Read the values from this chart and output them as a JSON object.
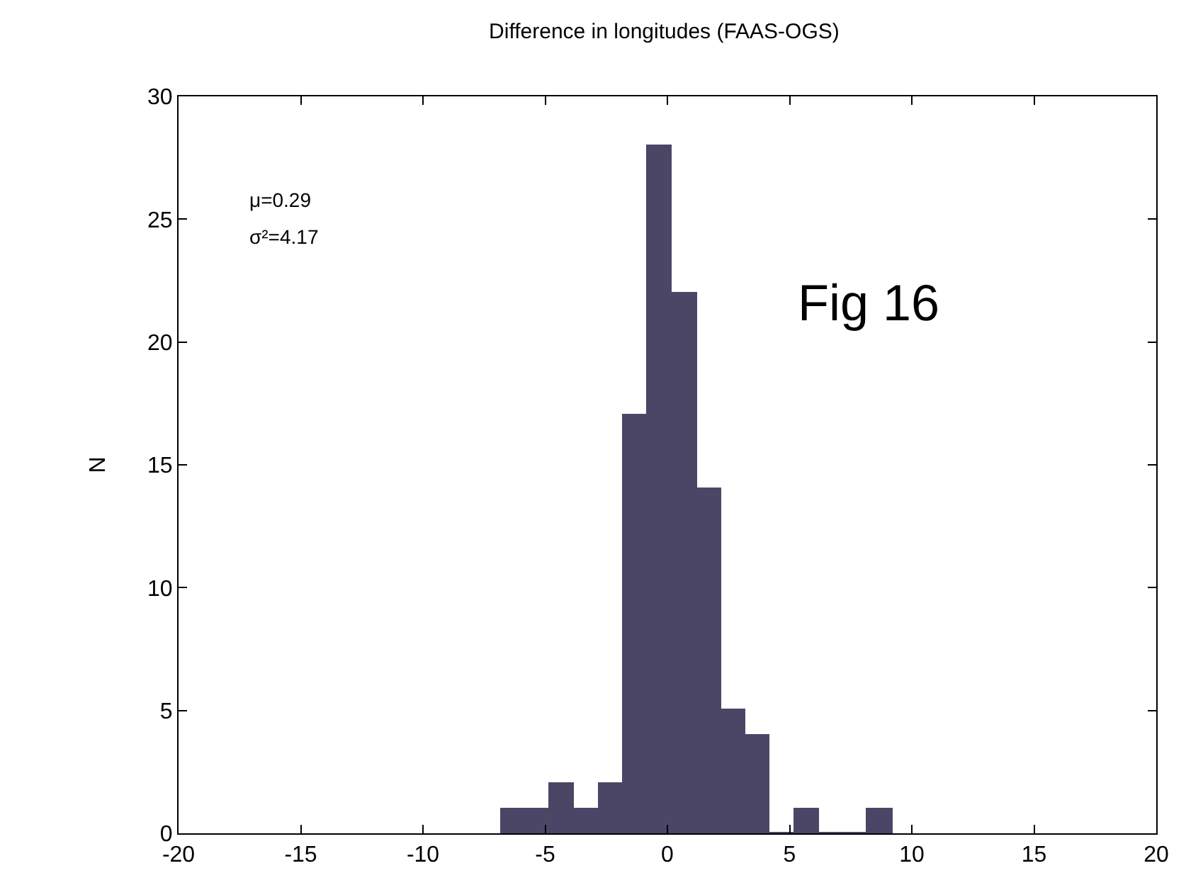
{
  "chart_data": {
    "type": "histogram",
    "title": "Difference in longitudes (FAAS-OGS)",
    "ylabel": "N",
    "bins": [
      -6.8,
      -5.8,
      -4.8,
      -3.8,
      -2.8,
      -1.8,
      -0.8,
      0.2,
      1.2,
      2.2,
      3.2,
      4.2,
      5.2,
      6.2,
      7.2,
      8.2,
      9.2
    ],
    "values": [
      1,
      1,
      2,
      1,
      2,
      17,
      28,
      22,
      14,
      5,
      4,
      0,
      1,
      0,
      0,
      1
    ],
    "color": "#4b4666",
    "xlim": [
      -20,
      20
    ],
    "xticks": [
      -20,
      -15,
      -10,
      -5,
      0,
      5,
      10,
      15,
      20
    ],
    "ylim": [
      0,
      30
    ],
    "yticks": [
      0,
      5,
      10,
      15,
      20,
      25,
      30
    ],
    "annotations": [
      "μ=0.29",
      "σ²=4.17",
      "Fig 16"
    ]
  }
}
